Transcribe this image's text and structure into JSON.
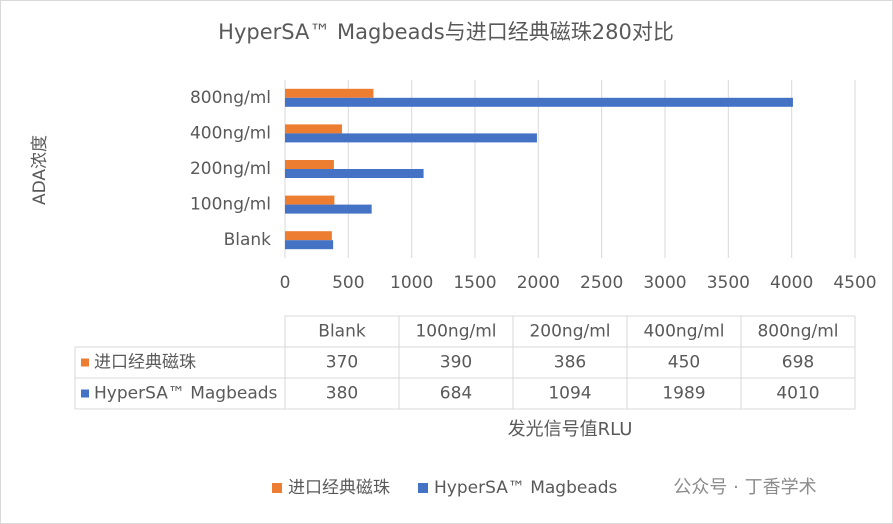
{
  "chart_data": {
    "type": "bar",
    "orientation": "horizontal",
    "title": "HyperSA™ Magbeads与进口经典磁珠280对比",
    "y_label": "ADA浓度",
    "x_label": "发光信号值RLU",
    "categories": [
      "Blank",
      "100ng/ml",
      "200ng/ml",
      "400ng/ml",
      "800ng/ml"
    ],
    "series": [
      {
        "name": "进口经典磁珠",
        "color": "#ed7d31",
        "values": [
          370,
          390,
          386,
          450,
          698
        ]
      },
      {
        "name": "HyperSA™ Magbeads",
        "color": "#4472c4",
        "values": [
          380,
          684,
          1094,
          1989,
          4010
        ]
      }
    ],
    "xlim": [
      0,
      4500
    ],
    "xticks": [
      0,
      500,
      1000,
      1500,
      2000,
      2500,
      3000,
      3500,
      4000,
      4500
    ],
    "grid": true,
    "legend": "bottom",
    "data_table": true,
    "watermark": "公众号 · 丁香学术"
  }
}
